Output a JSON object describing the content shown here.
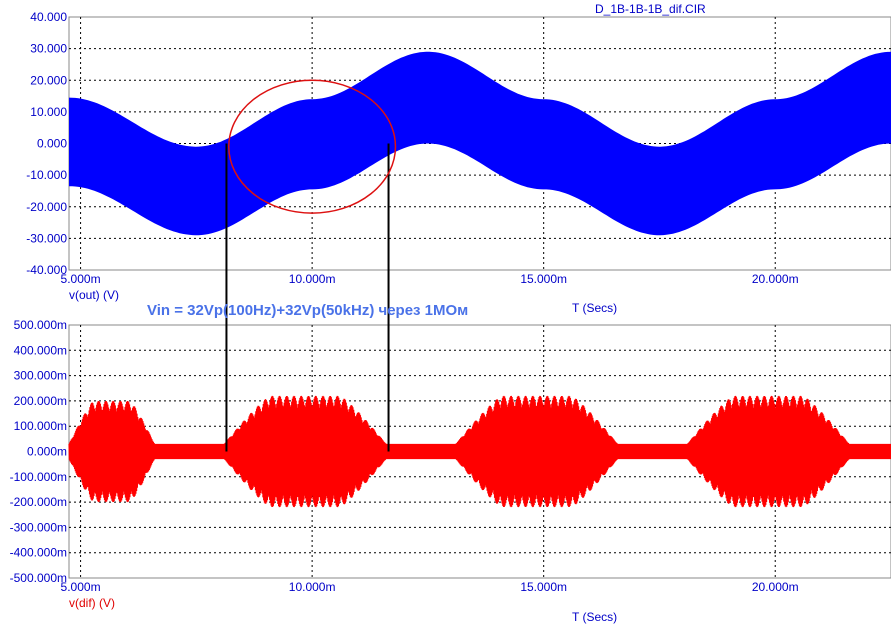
{
  "window": {
    "file_title": "D_1B-1B-1B_dif.CIR"
  },
  "annotation": "Vin = 32Vp(100Hz)+32Vp(50kHz) через 1MOм",
  "colors": {
    "top_trace": "#0000ff",
    "bottom_trace": "#ff0000",
    "axis_text": "#0000c8",
    "grid": "#000000",
    "circle": "#dd1111",
    "markers": "#000000"
  },
  "chart_data": [
    {
      "type": "area",
      "title": "",
      "series": [
        {
          "name": "v(out) (V)",
          "color": "#0000ff"
        }
      ],
      "ylabel": "v(out) (V)",
      "xlabel": "T (Secs)",
      "xlim": [
        0.00475,
        0.0225
      ],
      "ylim": [
        -40,
        40
      ],
      "y_ticks": [
        "40.000",
        "30.000",
        "20.000",
        "10.000",
        "0.000",
        "-10.000",
        "-20.000",
        "-30.000",
        "-40.000"
      ],
      "y_tick_values": [
        40,
        30,
        20,
        10,
        0,
        -10,
        -20,
        -30,
        -40
      ],
      "x_ticks": [
        "5.000m",
        "10.000m",
        "15.000m",
        "20.000m"
      ],
      "x_tick_values": [
        0.005,
        0.01,
        0.015,
        0.02
      ],
      "envelope": {
        "x": [
          0.00475,
          0.0075,
          0.01,
          0.0125,
          0.015,
          0.0175,
          0.02,
          0.0225
        ],
        "upper": [
          14.5,
          -1.0,
          14.0,
          29.0,
          14.0,
          -1.0,
          14.0,
          29.0
        ],
        "lower": [
          -13.5,
          -29.0,
          -14.5,
          0.0,
          -14.5,
          -29.0,
          -14.5,
          0.0
        ]
      },
      "grid": true
    },
    {
      "type": "line",
      "title": "",
      "series": [
        {
          "name": "v(dif) (V)",
          "color": "#ff0000"
        }
      ],
      "ylabel": "v(dif) (V)",
      "xlabel": "T (Secs)",
      "xlim": [
        0.00475,
        0.0225
      ],
      "ylim": [
        -0.5,
        0.5
      ],
      "y_ticks": [
        "500.000m",
        "400.000m",
        "300.000m",
        "200.000m",
        "100.000m",
        "0.000m",
        "-100.000m",
        "-200.000m",
        "-300.000m",
        "-400.000m",
        "-500.000m"
      ],
      "y_tick_values": [
        0.5,
        0.4,
        0.3,
        0.2,
        0.1,
        0,
        -0.1,
        -0.2,
        -0.3,
        -0.4,
        -0.5
      ],
      "x_ticks": [
        "5.000m",
        "10.000m",
        "15.000m",
        "20.000m"
      ],
      "x_tick_values": [
        0.005,
        0.01,
        0.015,
        0.02
      ],
      "baseline_band": 0.03,
      "bursts": [
        {
          "start": 0.00475,
          "end": 0.0066,
          "peak": 0.2
        },
        {
          "start": 0.0081,
          "end": 0.0116,
          "peak": 0.22
        },
        {
          "start": 0.0131,
          "end": 0.0166,
          "peak": 0.22
        },
        {
          "start": 0.0181,
          "end": 0.0216,
          "peak": 0.22
        }
      ],
      "grid": true
    }
  ],
  "markers": {
    "x1": 0.00815,
    "x2": 0.01165
  },
  "circle": {
    "cx": 0.01,
    "cy": -1,
    "rx_time": 0.0018,
    "ry_volts": 21
  }
}
